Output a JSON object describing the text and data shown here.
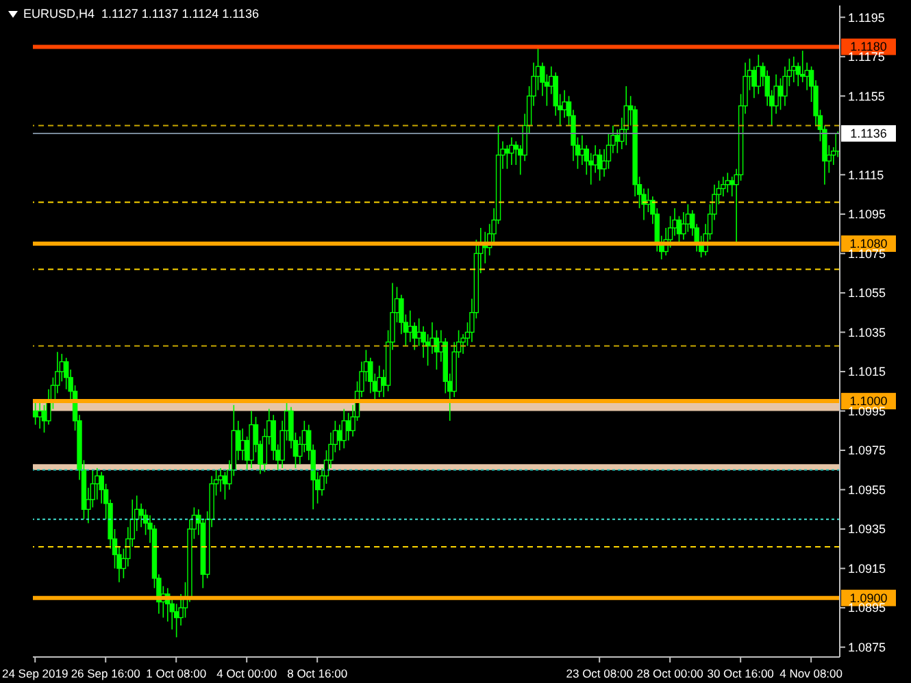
{
  "chart_data": {
    "type": "candlestick",
    "title": "EURUSD,H4  1.1127 1.1137 1.1124 1.1136",
    "categories": [
      "24 Sep 2019",
      null,
      null,
      null,
      null,
      null,
      null,
      null,
      null,
      null,
      null,
      null,
      null,
      null,
      null,
      null,
      "26 Sep 16:00",
      null,
      null,
      null,
      null,
      null,
      null,
      null,
      null,
      null,
      null,
      null,
      null,
      null,
      null,
      null,
      "1 Oct 08:00",
      null,
      null,
      null,
      null,
      null,
      null,
      null,
      null,
      null,
      null,
      null,
      null,
      null,
      null,
      null,
      "4 Oct 00:00",
      null,
      null,
      null,
      null,
      null,
      null,
      null,
      null,
      null,
      null,
      null,
      null,
      null,
      null,
      null,
      "8 Oct 16:00",
      null,
      null,
      null,
      null,
      null,
      null,
      null,
      null,
      null,
      null,
      null,
      null,
      null,
      null,
      null,
      null,
      null,
      null,
      null,
      null,
      null,
      null,
      null,
      null,
      null,
      null,
      null,
      null,
      null,
      null,
      null,
      null,
      null,
      null,
      null,
      null,
      null,
      null,
      null,
      null,
      null,
      null,
      null,
      null,
      null,
      null,
      null,
      null,
      null,
      null,
      null,
      null,
      null,
      null,
      null,
      null,
      null,
      null,
      null,
      null,
      null,
      null,
      null,
      "23 Oct 08:00",
      null,
      null,
      null,
      null,
      null,
      null,
      null,
      null,
      null,
      null,
      null,
      null,
      null,
      null,
      null,
      "28 Oct 00:00",
      null,
      null,
      null,
      null,
      null,
      null,
      null,
      null,
      null,
      null,
      null,
      null,
      null,
      null,
      null,
      "30 Oct 16:00",
      null,
      null,
      null,
      null,
      null,
      null,
      null,
      null,
      null,
      null,
      null,
      null,
      null,
      null,
      null,
      "4 Nov 08:00",
      null,
      null,
      null,
      null,
      null,
      null
    ],
    "color": "#00ff00",
    "ohlc": [
      [
        1.0995,
        1.1,
        1.0988,
        1.0992
      ],
      [
        1.0992,
        1.0999,
        1.0986,
        1.0995
      ],
      [
        1.0995,
        1.0998,
        1.0984,
        1.099
      ],
      [
        1.099,
        1.1006,
        1.0988,
        1.1
      ],
      [
        1.1,
        1.1012,
        1.0996,
        1.1008
      ],
      [
        1.1008,
        1.1025,
        1.1004,
        1.1015
      ],
      [
        1.1015,
        1.1024,
        1.101,
        1.102
      ],
      [
        1.102,
        1.1022,
        1.1006,
        1.1012
      ],
      [
        1.1012,
        1.1016,
        1.1,
        1.1005
      ],
      [
        1.1005,
        1.1008,
        1.0985,
        1.099
      ],
      [
        1.099,
        1.0993,
        1.096,
        1.0965
      ],
      [
        1.0965,
        1.097,
        1.094,
        1.0945
      ],
      [
        1.0945,
        1.0956,
        1.0938,
        1.095
      ],
      [
        1.095,
        1.0965,
        1.0946,
        1.0958
      ],
      [
        1.0958,
        1.0966,
        1.095,
        1.0962
      ],
      [
        1.0962,
        1.0964,
        1.0948,
        1.0955
      ],
      [
        1.0955,
        1.0958,
        1.094,
        1.0948
      ],
      [
        1.0948,
        1.095,
        1.0925,
        1.093
      ],
      [
        1.093,
        1.0935,
        1.0915,
        1.0922
      ],
      [
        1.0922,
        1.0926,
        1.0908,
        1.0915
      ],
      [
        1.0915,
        1.0925,
        1.091,
        1.092
      ],
      [
        1.092,
        1.0936,
        1.0916,
        1.093
      ],
      [
        1.093,
        1.095,
        1.0926,
        1.094
      ],
      [
        1.094,
        1.0952,
        1.0934,
        1.0945
      ],
      [
        1.0945,
        1.0948,
        1.0936,
        1.0942
      ],
      [
        1.0942,
        1.0945,
        1.0932,
        1.0938
      ],
      [
        1.0938,
        1.0942,
        1.0928,
        1.0935
      ],
      [
        1.0935,
        1.0937,
        1.0905,
        1.091
      ],
      [
        1.091,
        1.0912,
        1.0892,
        1.0898
      ],
      [
        1.0898,
        1.0906,
        1.089,
        1.0902
      ],
      [
        1.0902,
        1.0905,
        1.0888,
        1.0897
      ],
      [
        1.0897,
        1.09,
        1.0884,
        1.0893
      ],
      [
        1.0893,
        1.0897,
        1.088,
        1.089
      ],
      [
        1.089,
        1.0902,
        1.0886,
        1.0895
      ],
      [
        1.0895,
        1.0908,
        1.089,
        1.09
      ],
      [
        1.09,
        1.094,
        1.0898,
        1.0935
      ],
      [
        1.0935,
        1.0946,
        1.093,
        1.0942
      ],
      [
        1.0942,
        1.0945,
        1.0932,
        1.0938
      ],
      [
        1.0938,
        1.094,
        1.0905,
        1.0912
      ],
      [
        1.0912,
        1.0944,
        1.091,
        1.094
      ],
      [
        1.094,
        1.0962,
        1.0936,
        1.0958
      ],
      [
        1.0958,
        1.0965,
        1.0952,
        1.096
      ],
      [
        1.096,
        1.0966,
        1.0954,
        1.0962
      ],
      [
        1.0962,
        1.0964,
        1.095,
        1.0958
      ],
      [
        1.0958,
        1.097,
        1.0955,
        1.0965
      ],
      [
        1.0965,
        1.0998,
        1.0962,
        1.0985
      ],
      [
        1.0985,
        1.099,
        1.097,
        1.0975
      ],
      [
        1.0975,
        1.0986,
        1.097,
        1.098
      ],
      [
        1.098,
        1.0982,
        1.0965,
        1.097
      ],
      [
        1.097,
        1.0995,
        1.0966,
        1.0988
      ],
      [
        1.0988,
        1.0992,
        1.0974,
        1.0978
      ],
      [
        1.0978,
        1.098,
        1.0963,
        1.0968
      ],
      [
        1.0968,
        1.0986,
        1.0964,
        1.0982
      ],
      [
        1.0982,
        1.0996,
        1.0978,
        1.099
      ],
      [
        1.099,
        1.0993,
        1.097,
        1.0975
      ],
      [
        1.0975,
        1.0978,
        1.0965,
        1.097
      ],
      [
        1.097,
        1.099,
        1.0966,
        1.0985
      ],
      [
        1.0985,
        1.0999,
        1.098,
        1.0995
      ],
      [
        1.0995,
        1.0997,
        1.0976,
        1.098
      ],
      [
        1.098,
        1.0984,
        1.0966,
        1.0972
      ],
      [
        1.0972,
        1.0982,
        1.0968,
        1.0978
      ],
      [
        1.0978,
        1.099,
        1.0974,
        1.0985
      ],
      [
        1.0985,
        1.0988,
        1.097,
        1.0975
      ],
      [
        1.0975,
        1.0978,
        1.0945,
        1.096
      ],
      [
        1.096,
        1.0964,
        1.0948,
        1.0955
      ],
      [
        1.0955,
        1.0966,
        1.0952,
        1.0962
      ],
      [
        1.0962,
        1.0975,
        1.0958,
        1.097
      ],
      [
        1.097,
        1.0984,
        1.0966,
        1.0978
      ],
      [
        1.0978,
        1.099,
        1.0974,
        1.0985
      ],
      [
        1.0985,
        1.0988,
        1.0975,
        1.098
      ],
      [
        1.098,
        1.0996,
        1.0976,
        1.099
      ],
      [
        1.099,
        1.0994,
        1.098,
        1.0985
      ],
      [
        1.0985,
        1.0998,
        1.0982,
        1.0992
      ],
      [
        1.0992,
        1.101,
        1.099,
        1.1005
      ],
      [
        1.1005,
        1.102,
        1.1002,
        1.1015
      ],
      [
        1.1015,
        1.1026,
        1.101,
        1.102
      ],
      [
        1.102,
        1.1022,
        1.1004,
        1.101
      ],
      [
        1.101,
        1.1014,
        1.1,
        1.1005
      ],
      [
        1.1005,
        1.1018,
        1.1002,
        1.1012
      ],
      [
        1.1012,
        1.1016,
        1.1002,
        1.1008
      ],
      [
        1.1008,
        1.1036,
        1.1005,
        1.103
      ],
      [
        1.103,
        1.106,
        1.1026,
        1.1045
      ],
      [
        1.1045,
        1.1058,
        1.104,
        1.1052
      ],
      [
        1.1052,
        1.1054,
        1.1034,
        1.104
      ],
      [
        1.104,
        1.1044,
        1.1028,
        1.1035
      ],
      [
        1.1035,
        1.1046,
        1.103,
        1.1038
      ],
      [
        1.1038,
        1.104,
        1.1026,
        1.1032
      ],
      [
        1.1032,
        1.1042,
        1.1028,
        1.1035
      ],
      [
        1.1035,
        1.1038,
        1.1022,
        1.103
      ],
      [
        1.103,
        1.1034,
        1.1018,
        1.1028
      ],
      [
        1.1028,
        1.104,
        1.1024,
        1.1032
      ],
      [
        1.1032,
        1.1036,
        1.1016,
        1.1025
      ],
      [
        1.1025,
        1.1036,
        1.102,
        1.103
      ],
      [
        1.103,
        1.1032,
        1.1004,
        1.101
      ],
      [
        1.101,
        1.1014,
        1.099,
        1.1005
      ],
      [
        1.1005,
        1.103,
        1.1002,
        1.1025
      ],
      [
        1.1025,
        1.1036,
        1.1022,
        1.103
      ],
      [
        1.103,
        1.1034,
        1.1024,
        1.1032
      ],
      [
        1.1032,
        1.104,
        1.1028,
        1.1035
      ],
      [
        1.1035,
        1.1052,
        1.103,
        1.1045
      ],
      [
        1.1045,
        1.1082,
        1.1042,
        1.1075
      ],
      [
        1.1075,
        1.1088,
        1.1065,
        1.108
      ],
      [
        1.108,
        1.1086,
        1.107,
        1.1078
      ],
      [
        1.1078,
        1.109,
        1.1074,
        1.1085
      ],
      [
        1.1085,
        1.1098,
        1.108,
        1.1092
      ],
      [
        1.1092,
        1.114,
        1.109,
        1.1125
      ],
      [
        1.1125,
        1.1132,
        1.1118,
        1.1128
      ],
      [
        1.1128,
        1.113,
        1.1118,
        1.1126
      ],
      [
        1.1126,
        1.1134,
        1.112,
        1.113
      ],
      [
        1.113,
        1.1132,
        1.112,
        1.1128
      ],
      [
        1.1128,
        1.113,
        1.1115,
        1.1125
      ],
      [
        1.1125,
        1.1146,
        1.1122,
        1.114
      ],
      [
        1.114,
        1.116,
        1.1136,
        1.1155
      ],
      [
        1.1155,
        1.1172,
        1.115,
        1.1165
      ],
      [
        1.1165,
        1.118,
        1.1158,
        1.117
      ],
      [
        1.117,
        1.1172,
        1.1155,
        1.1162
      ],
      [
        1.1162,
        1.1166,
        1.115,
        1.116
      ],
      [
        1.116,
        1.117,
        1.1156,
        1.1165
      ],
      [
        1.1165,
        1.1167,
        1.1145,
        1.115
      ],
      [
        1.115,
        1.1156,
        1.114,
        1.1148
      ],
      [
        1.1148,
        1.1158,
        1.1144,
        1.1152
      ],
      [
        1.1152,
        1.1155,
        1.114,
        1.1145
      ],
      [
        1.1145,
        1.1148,
        1.1122,
        1.113
      ],
      [
        1.113,
        1.1134,
        1.1118,
        1.1125
      ],
      [
        1.1125,
        1.1135,
        1.112,
        1.1128
      ],
      [
        1.1128,
        1.113,
        1.1115,
        1.1122
      ],
      [
        1.1122,
        1.1126,
        1.111,
        1.112
      ],
      [
        1.112,
        1.113,
        1.1116,
        1.1125
      ],
      [
        1.1125,
        1.1128,
        1.1112,
        1.1118
      ],
      [
        1.1118,
        1.1128,
        1.1114,
        1.1122
      ],
      [
        1.1122,
        1.1136,
        1.1118,
        1.113
      ],
      [
        1.113,
        1.114,
        1.1126,
        1.1135
      ],
      [
        1.1135,
        1.1138,
        1.1126,
        1.1132
      ],
      [
        1.1132,
        1.1144,
        1.1128,
        1.1138
      ],
      [
        1.1138,
        1.116,
        1.113,
        1.115
      ],
      [
        1.115,
        1.1155,
        1.114,
        1.1148
      ],
      [
        1.1148,
        1.115,
        1.1104,
        1.111
      ],
      [
        1.111,
        1.1114,
        1.1098,
        1.1105
      ],
      [
        1.1105,
        1.1108,
        1.1092,
        1.11
      ],
      [
        1.11,
        1.1108,
        1.1096,
        1.1102
      ],
      [
        1.1102,
        1.1104,
        1.109,
        1.1095
      ],
      [
        1.1095,
        1.1098,
        1.1076,
        1.108
      ],
      [
        1.108,
        1.1084,
        1.1072,
        1.1076
      ],
      [
        1.1076,
        1.1088,
        1.1074,
        1.1082
      ],
      [
        1.1082,
        1.1094,
        1.1078,
        1.1088
      ],
      [
        1.1088,
        1.1098,
        1.1084,
        1.1092
      ],
      [
        1.1092,
        1.1094,
        1.108,
        1.1085
      ],
      [
        1.1085,
        1.1096,
        1.1082,
        1.109
      ],
      [
        1.109,
        1.11,
        1.1086,
        1.1095
      ],
      [
        1.1095,
        1.1097,
        1.1084,
        1.1088
      ],
      [
        1.1088,
        1.109,
        1.1076,
        1.108
      ],
      [
        1.108,
        1.1084,
        1.1073,
        1.1076
      ],
      [
        1.1076,
        1.109,
        1.1074,
        1.1085
      ],
      [
        1.1085,
        1.11,
        1.1082,
        1.1095
      ],
      [
        1.1095,
        1.111,
        1.1092,
        1.1105
      ],
      [
        1.1105,
        1.1112,
        1.11,
        1.1108
      ],
      [
        1.1108,
        1.1114,
        1.1104,
        1.111
      ],
      [
        1.111,
        1.1116,
        1.1106,
        1.1112
      ],
      [
        1.1112,
        1.1114,
        1.1104,
        1.111
      ],
      [
        1.111,
        1.1118,
        1.108,
        1.1115
      ],
      [
        1.1115,
        1.1156,
        1.1112,
        1.115
      ],
      [
        1.115,
        1.1172,
        1.1146,
        1.1165
      ],
      [
        1.1165,
        1.1174,
        1.1158,
        1.1168
      ],
      [
        1.1168,
        1.117,
        1.1154,
        1.116
      ],
      [
        1.116,
        1.1176,
        1.1156,
        1.117
      ],
      [
        1.117,
        1.1172,
        1.116,
        1.1165
      ],
      [
        1.1165,
        1.1168,
        1.115,
        1.1155
      ],
      [
        1.1155,
        1.1158,
        1.114,
        1.115
      ],
      [
        1.115,
        1.1166,
        1.1146,
        1.116
      ],
      [
        1.116,
        1.1164,
        1.1148,
        1.1155
      ],
      [
        1.1155,
        1.117,
        1.115,
        1.1165
      ],
      [
        1.1165,
        1.1174,
        1.116,
        1.1168
      ],
      [
        1.1168,
        1.1175,
        1.1162,
        1.117
      ],
      [
        1.117,
        1.1172,
        1.116,
        1.1166
      ],
      [
        1.1166,
        1.1178,
        1.1162,
        1.1165
      ],
      [
        1.1165,
        1.1172,
        1.1158,
        1.1168
      ],
      [
        1.1168,
        1.117,
        1.1152,
        1.116
      ],
      [
        1.116,
        1.1163,
        1.114,
        1.1145
      ],
      [
        1.1145,
        1.1148,
        1.1132,
        1.1138
      ],
      [
        1.1138,
        1.114,
        1.111,
        1.1122
      ],
      [
        1.1122,
        1.113,
        1.1116,
        1.1125
      ],
      [
        1.1125,
        1.1129,
        1.112,
        1.1127
      ],
      [
        1.1127,
        1.1137,
        1.1124,
        1.1136
      ]
    ],
    "ylim": [
      1.087,
      1.1201
    ],
    "yticks": [
      1.0875,
      1.0895,
      1.0915,
      1.0935,
      1.0955,
      1.0975,
      1.0995,
      1.1015,
      1.1035,
      1.1055,
      1.1075,
      1.1095,
      1.1115,
      1.1155,
      1.1175,
      1.1195
    ],
    "ref_lines": [
      {
        "axis": "y",
        "value": 1.118,
        "label": "1.1180",
        "color": "#ff4500",
        "line_style": "solid"
      },
      {
        "axis": "y",
        "value": 1.108,
        "label": "1.1080",
        "color": "#ffa500",
        "line_style": "solid"
      },
      {
        "axis": "y",
        "value": 1.1,
        "label": "1.1000",
        "color": "#ffa500",
        "line_style": "solid"
      },
      {
        "axis": "y",
        "value": 1.09,
        "label": "1.0900",
        "color": "#ffa500",
        "line_style": "solid"
      },
      {
        "axis": "y",
        "value": 1.1136,
        "label": "1.1136",
        "color": "#778899",
        "line_style": "solid"
      },
      {
        "axis": "y",
        "value": 1.114,
        "color": "#c8a800",
        "line_style": "dashed"
      },
      {
        "axis": "y",
        "value": 1.1101,
        "color": "#ffd700",
        "line_style": "dashed"
      },
      {
        "axis": "y",
        "value": 1.1067,
        "color": "#ffd700",
        "line_style": "dashed"
      },
      {
        "axis": "y",
        "value": 1.1028,
        "color": "#c8a800",
        "line_style": "dashed"
      },
      {
        "axis": "y",
        "value": 1.0926,
        "color": "#ffd700",
        "line_style": "dashed"
      },
      {
        "axis": "y",
        "value": 1.0965,
        "color": "#20b2aa",
        "line_style": "dotted"
      },
      {
        "axis": "y",
        "value": 1.094,
        "color": "#40e0d0",
        "line_style": "dotted"
      }
    ],
    "bands": [
      {
        "axis": "y",
        "from": 1.0995,
        "to": 1.1,
        "color": "#ffdab9"
      },
      {
        "axis": "y",
        "from": 1.0965,
        "to": 1.0968,
        "color": "#ffdab9"
      }
    ]
  }
}
